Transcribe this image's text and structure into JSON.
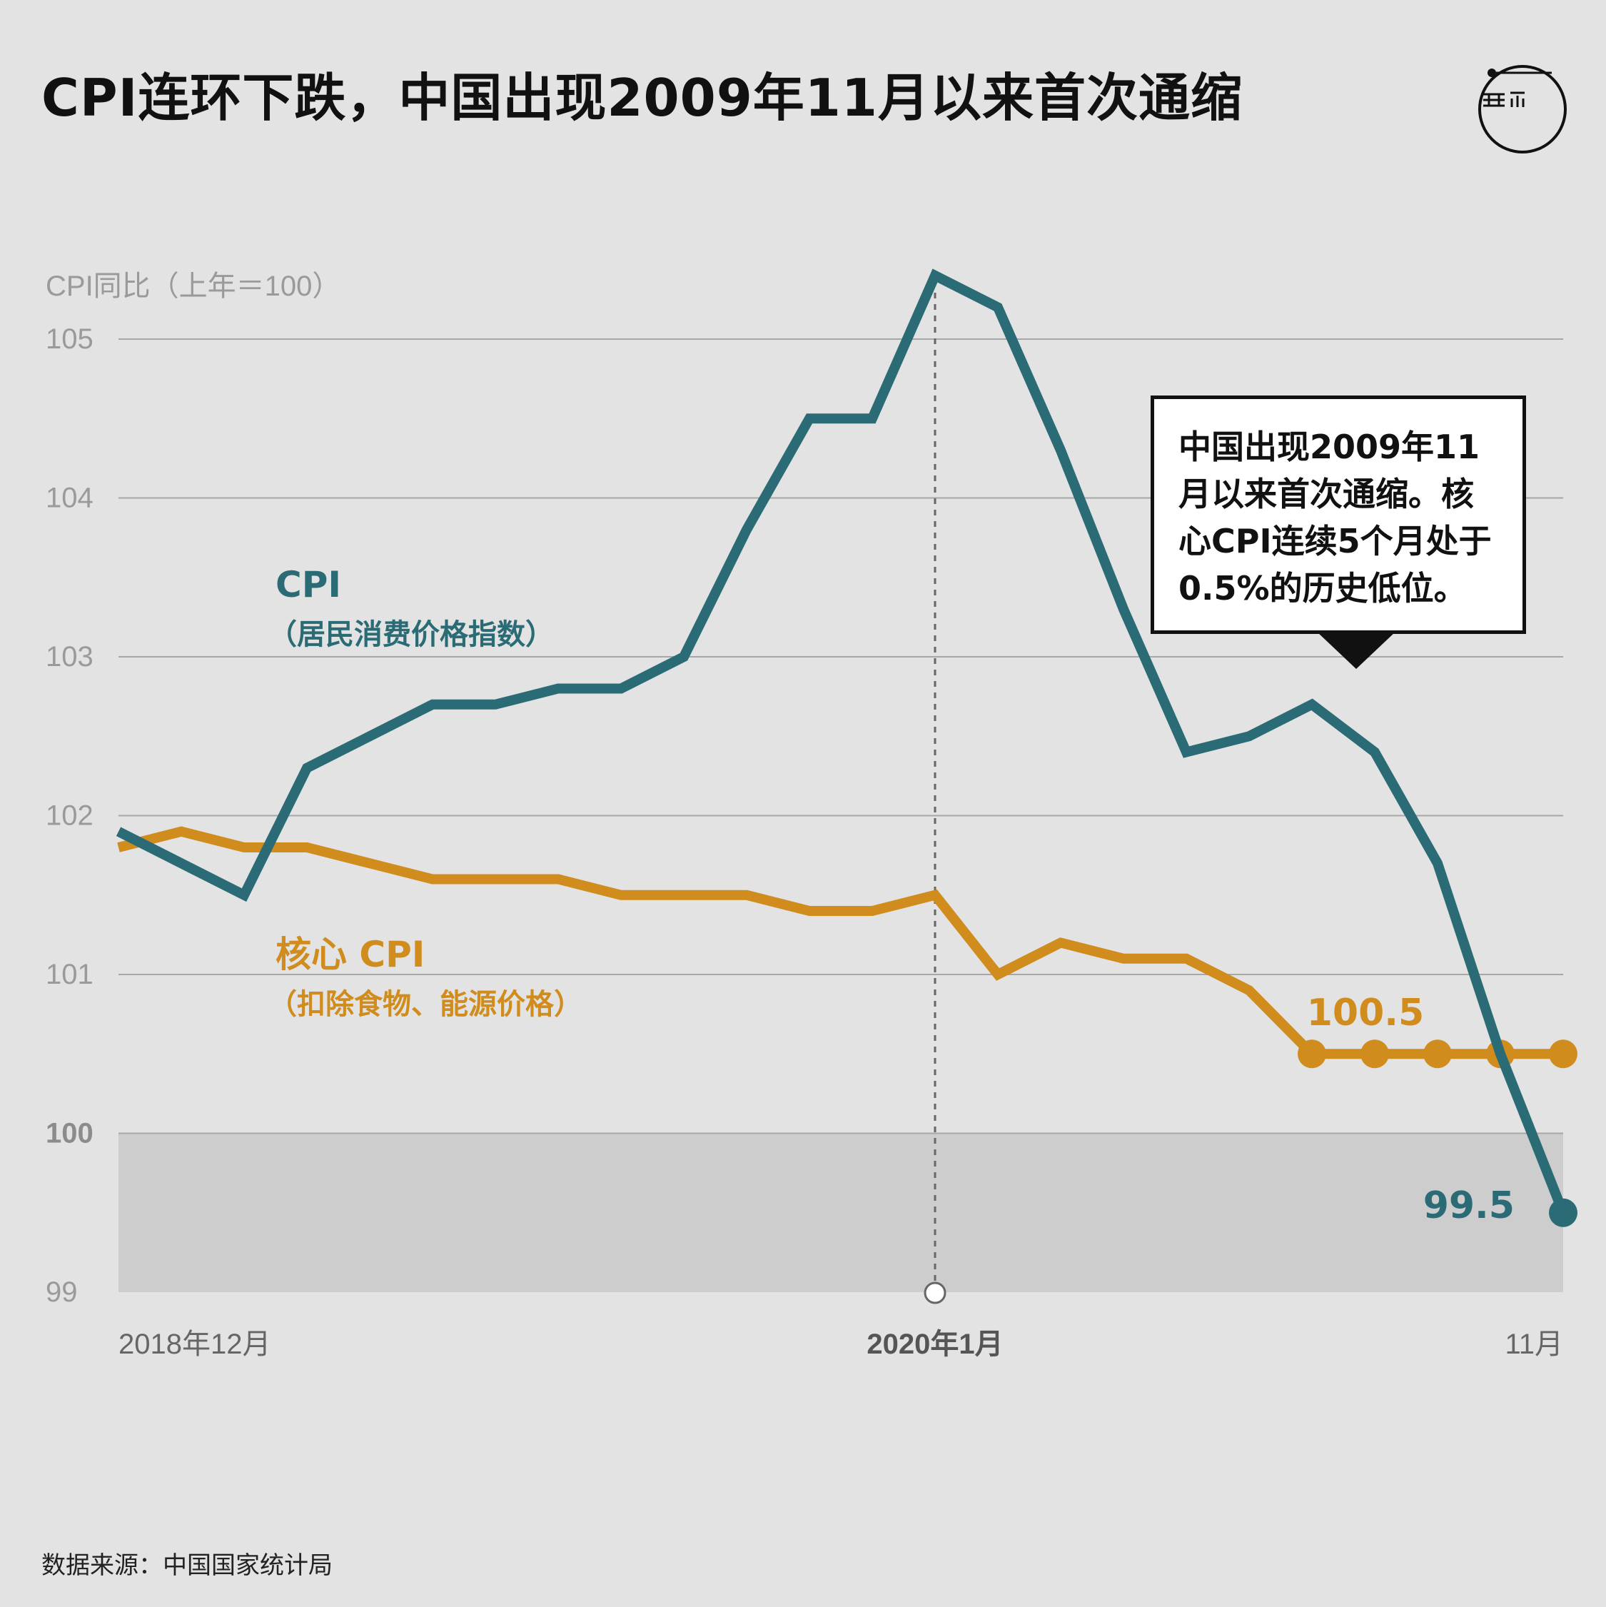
{
  "title": "CPI连环下跌，中国出现2009年11月以来首次通缩",
  "source": "数据来源：中国国家统计局",
  "callout": "中国出现2009年11月以来首次通缩。核心CPI连续5个月处于0.5%的历史低位。",
  "chart_data": {
    "type": "line",
    "ylabel": "CPI同比（上年＝100）",
    "ylim": [
      99,
      105.4
    ],
    "yticks": [
      99,
      100,
      101,
      102,
      103,
      104,
      105
    ],
    "x": [
      "2018-12",
      "2019-01",
      "2019-02",
      "2019-03",
      "2019-04",
      "2019-05",
      "2019-06",
      "2019-07",
      "2019-08",
      "2019-09",
      "2019-10",
      "2019-11",
      "2019-12",
      "2020-01",
      "2020-02",
      "2020-03",
      "2020-04",
      "2020-05",
      "2020-06",
      "2020-07",
      "2020-08",
      "2020-09",
      "2020-10",
      "2020-11"
    ],
    "xtick_labels": [
      {
        "x": "2018-12",
        "label": "2018年12月",
        "bold": false
      },
      {
        "x": "2020-01",
        "label": "2020年1月",
        "bold": true
      },
      {
        "x": "2020-11",
        "label": "11月",
        "bold": false
      }
    ],
    "highlight_x": "2020-01",
    "deflation_band": [
      99,
      100
    ],
    "series": [
      {
        "name": "CPI",
        "name_sub": "（居民消费价格指数）",
        "color": "#2a6b76",
        "values": [
          101.9,
          101.7,
          101.5,
          102.3,
          102.5,
          102.7,
          102.7,
          102.8,
          102.8,
          103.0,
          103.8,
          104.5,
          104.5,
          105.4,
          105.2,
          104.3,
          103.3,
          102.4,
          102.5,
          102.7,
          102.4,
          101.7,
          100.5,
          99.5
        ],
        "marker_x": [
          "2020-11"
        ],
        "end_label": "99.5"
      },
      {
        "name": "核心 CPI",
        "name_sub": "（扣除食物、能源价格）",
        "color": "#d08c1c",
        "values": [
          101.8,
          101.9,
          101.8,
          101.8,
          101.7,
          101.6,
          101.6,
          101.6,
          101.5,
          101.5,
          101.5,
          101.4,
          101.4,
          101.5,
          101.0,
          101.2,
          101.1,
          101.1,
          100.9,
          100.5,
          100.5,
          100.5,
          100.5,
          100.5
        ],
        "marker_x": [
          "2020-07",
          "2020-08",
          "2020-09",
          "2020-10",
          "2020-11"
        ],
        "end_label": "100.5"
      }
    ]
  }
}
